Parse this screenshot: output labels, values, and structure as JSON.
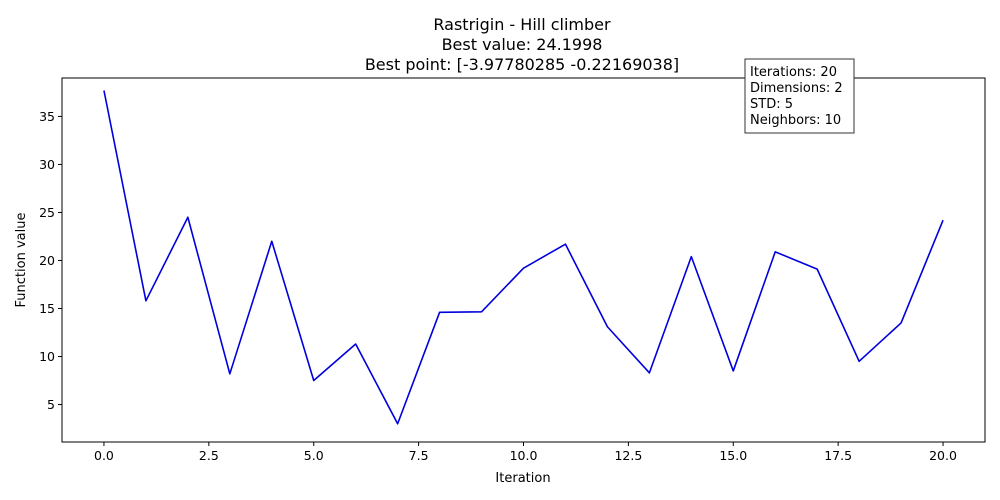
{
  "chart_data": {
    "type": "line",
    "title_lines": [
      "Rastrigin - Hill climber",
      "Best value: 24.1998",
      "Best point: [-3.97780285 -0.22169038]"
    ],
    "xlabel": "Iteration",
    "ylabel": "Function value",
    "xlim": [
      -1.0,
      21.0
    ],
    "ylim": [
      1.1,
      39.0
    ],
    "xticks": [
      0.0,
      2.5,
      5.0,
      7.5,
      10.0,
      12.5,
      15.0,
      17.5,
      20.0
    ],
    "xtick_labels": [
      "0.0",
      "2.5",
      "5.0",
      "7.5",
      "10.0",
      "12.5",
      "15.0",
      "17.5",
      "20.0"
    ],
    "yticks": [
      5,
      10,
      15,
      20,
      25,
      30,
      35
    ],
    "ytick_labels": [
      "5",
      "10",
      "15",
      "20",
      "25",
      "30",
      "35"
    ],
    "grid": false,
    "series": [
      {
        "color": "#0000dd",
        "x": [
          0,
          1,
          2,
          3,
          4,
          5,
          6,
          7,
          8,
          9,
          10,
          11,
          12,
          13,
          14,
          15,
          16,
          17,
          18,
          19,
          20
        ],
        "y": [
          37.7,
          15.8,
          24.5,
          8.2,
          22.0,
          7.5,
          11.3,
          3.0,
          14.6,
          14.65,
          19.2,
          21.7,
          13.1,
          8.3,
          20.4,
          8.5,
          20.9,
          19.1,
          9.5,
          13.5,
          24.2
        ]
      }
    ],
    "annotation": {
      "placement": "top-right",
      "lines": [
        "Iterations: 20",
        "Dimensions: 2",
        "STD: 5",
        "Neighbors: 10"
      ]
    }
  }
}
